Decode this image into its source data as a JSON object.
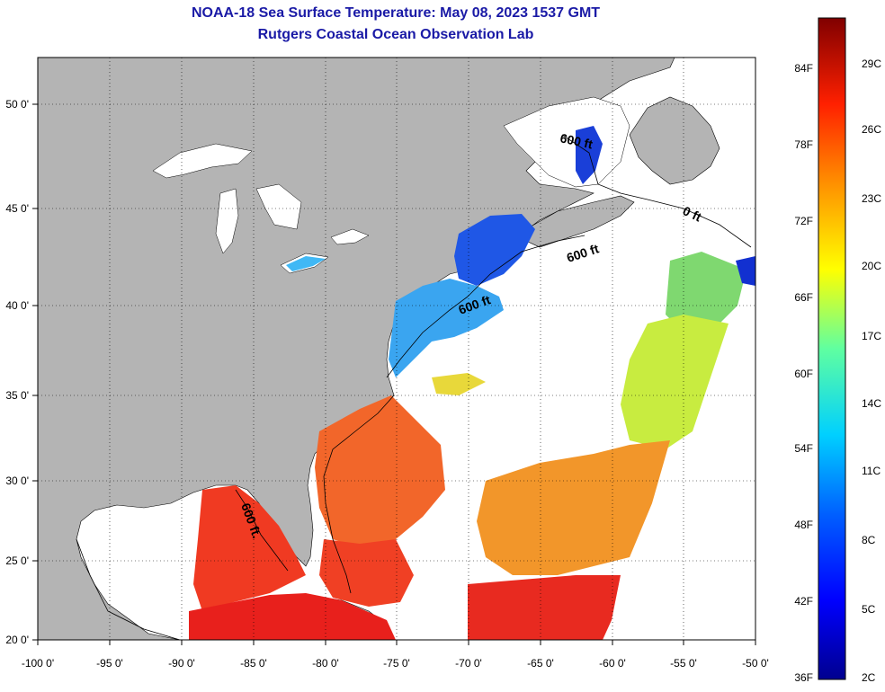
{
  "title": "NOAA-18 Sea Surface Temperature:  May 08, 2023 1537 GMT",
  "subtitle": "Rutgers Coastal Ocean Observation Lab",
  "contour_label": "600 ft",
  "contour_label_short": "600 ft.",
  "contour_label_partial": "0 ft",
  "lon_ticks": [
    "-100 0'",
    "-95 0'",
    "-90 0'",
    "-85 0'",
    "-80 0'",
    "-75 0'",
    "-70 0'",
    "-65 0'",
    "-60 0'",
    "-55 0'",
    "-50 0'"
  ],
  "lat_ticks": [
    "20 0'",
    "25 0'",
    "30 0'",
    "35 0'",
    "40 0'",
    "45 0'",
    "50 0'"
  ],
  "colorbar": {
    "fahrenheit": [
      "84F",
      "78F",
      "72F",
      "66F",
      "60F",
      "54F",
      "48F",
      "42F",
      "36F"
    ],
    "celsius": [
      "29C",
      "26C",
      "23C",
      "20C",
      "17C",
      "14C",
      "11C",
      "8C",
      "5C",
      "2C"
    ]
  },
  "colors": {
    "land": "#b4b4b4",
    "ocean_nodata": "#ffffff",
    "title": "#1a1aa6"
  }
}
